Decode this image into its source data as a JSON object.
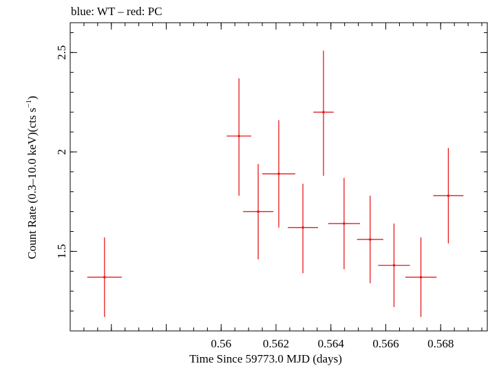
{
  "chart_data": {
    "type": "scatter",
    "title": "blue: WT – red: PC",
    "xlabel": "Time Since 59773.0 MJD (days)",
    "ylabel_main": "Count Rate (0.3–10.0 keV)(cts s",
    "ylabel_sup": "−1",
    "ylabel_close": ")",
    "xlim": [
      0.5545,
      0.5697
    ],
    "ylim": [
      1.1,
      2.65
    ],
    "x_ticks": [
      0.556,
      0.558,
      0.56,
      0.562,
      0.564,
      0.566,
      0.568
    ],
    "x_tick_labels": [
      "0.56",
      "0.562",
      "0.564",
      "0.566",
      "0.568"
    ],
    "x_tick_label_values": [
      0.56,
      0.562,
      0.564,
      0.566,
      0.568
    ],
    "y_ticks": [
      1.5,
      2.0,
      2.5
    ],
    "y_tick_labels": [
      "1.5",
      "2",
      "2.5"
    ],
    "grid": false,
    "series": [
      {
        "color": "#e8181a",
        "points": [
          {
            "x": 0.55575,
            "xerr": 0.00063,
            "y": 1.37,
            "yerr_lo": 0.2,
            "yerr_hi": 0.2
          },
          {
            "x": 0.56065,
            "xerr": 0.00045,
            "y": 2.08,
            "yerr_lo": 0.3,
            "yerr_hi": 0.29
          },
          {
            "x": 0.56135,
            "xerr": 0.00055,
            "y": 1.7,
            "yerr_lo": 0.24,
            "yerr_hi": 0.24
          },
          {
            "x": 0.5621,
            "xerr": 0.0006,
            "y": 1.89,
            "yerr_lo": 0.27,
            "yerr_hi": 0.27
          },
          {
            "x": 0.56298,
            "xerr": 0.00055,
            "y": 1.62,
            "yerr_lo": 0.23,
            "yerr_hi": 0.22
          },
          {
            "x": 0.56373,
            "xerr": 0.00037,
            "y": 2.2,
            "yerr_lo": 0.32,
            "yerr_hi": 0.31
          },
          {
            "x": 0.56448,
            "xerr": 0.00058,
            "y": 1.64,
            "yerr_lo": 0.23,
            "yerr_hi": 0.23
          },
          {
            "x": 0.56543,
            "xerr": 0.00048,
            "y": 1.56,
            "yerr_lo": 0.22,
            "yerr_hi": 0.22
          },
          {
            "x": 0.5663,
            "xerr": 0.00058,
            "y": 1.43,
            "yerr_lo": 0.21,
            "yerr_hi": 0.21
          },
          {
            "x": 0.56728,
            "xerr": 0.00057,
            "y": 1.37,
            "yerr_lo": 0.2,
            "yerr_hi": 0.2
          },
          {
            "x": 0.56828,
            "xerr": 0.00055,
            "y": 1.78,
            "yerr_lo": 0.24,
            "yerr_hi": 0.24
          }
        ]
      }
    ]
  }
}
